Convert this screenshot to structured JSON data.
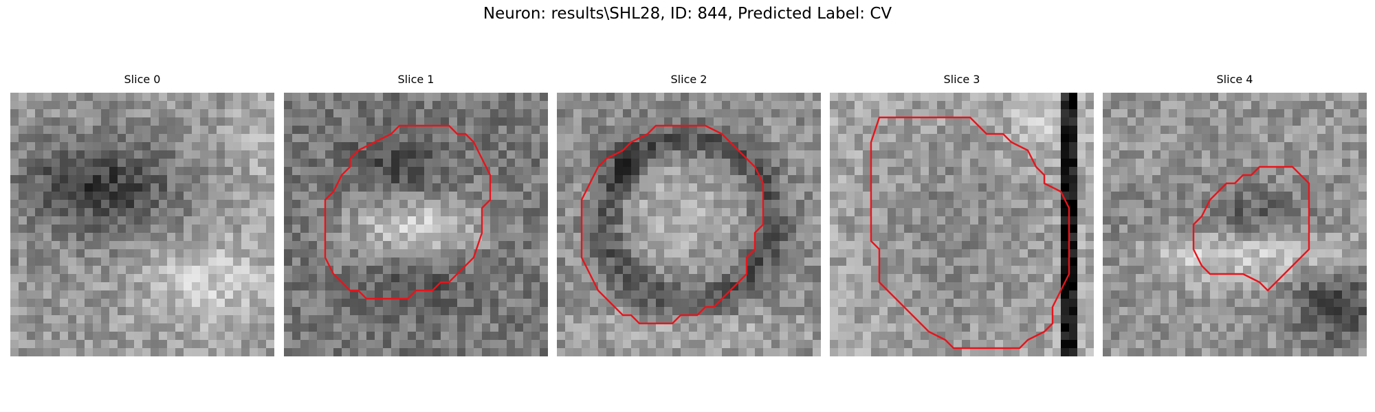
{
  "figure": {
    "title": "Neuron: results\\SHL28, ID: 844, Predicted Label: CV"
  },
  "panels": [
    {
      "title": "Slice 0",
      "has_contour": false
    },
    {
      "title": "Slice 1",
      "has_contour": true
    },
    {
      "title": "Slice 2",
      "has_contour": true
    },
    {
      "title": "Slice 3",
      "has_contour": true
    },
    {
      "title": "Slice 4",
      "has_contour": true
    }
  ],
  "colors": {
    "contour": "#e8141b",
    "background": "#ffffff"
  }
}
